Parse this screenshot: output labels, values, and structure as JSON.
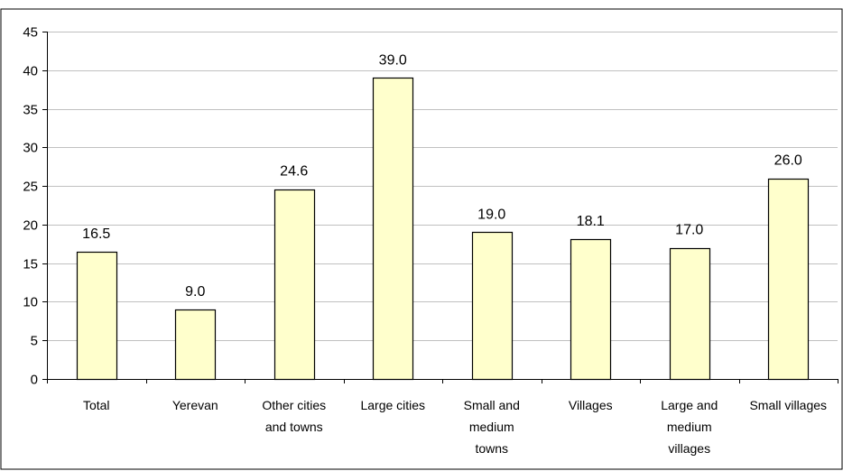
{
  "chart_data": {
    "type": "bar",
    "categories": [
      [
        "Total"
      ],
      [
        "Yerevan"
      ],
      [
        "Other cities",
        "and towns"
      ],
      [
        "Large cities"
      ],
      [
        "Small and",
        "medium",
        "towns"
      ],
      [
        "Villages"
      ],
      [
        "Large and",
        "medium",
        "villages"
      ],
      [
        "Small villages"
      ]
    ],
    "values": [
      16.5,
      9.0,
      24.6,
      39.0,
      19.0,
      18.1,
      17.0,
      26.0
    ],
    "data_labels": [
      "16.5",
      "9.0",
      "24.6",
      "39.0",
      "19.0",
      "18.1",
      "17.0",
      "26.0"
    ],
    "y_ticks": [
      "0",
      "5",
      "10",
      "15",
      "20",
      "25",
      "30",
      "35",
      "40",
      "45"
    ],
    "ylim": [
      0,
      45
    ],
    "grid": true,
    "legend": false,
    "colors": {
      "bar_fill": "#ffffcc",
      "bar_stroke": "#000000",
      "grid": "#c0c0c0",
      "axis": "#000000"
    }
  }
}
